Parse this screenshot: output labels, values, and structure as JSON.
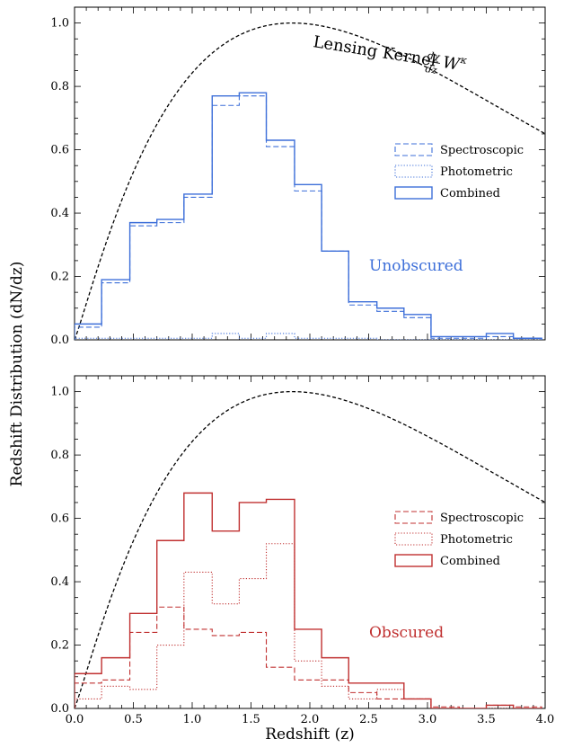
{
  "ylabel": "Redshift Distribution (dN/dz)",
  "xlabel": "Redshift (z)",
  "kernel_label_main": "Lensing Kernel",
  "kernel_label_frac_num": "dχ",
  "kernel_label_frac_den": "dz",
  "kernel_label_tail": "W",
  "kernel_label_sup": "κ",
  "colors": {
    "unobscured": "#3d6fd9",
    "obscured": "#c03030",
    "kernel": "#000000"
  },
  "chart_data": [
    {
      "type": "step",
      "title": "",
      "annotation": "Unobscured",
      "xlim": [
        0.0,
        4.0
      ],
      "ylim": [
        0.0,
        1.05
      ],
      "xticks": [
        "0.0",
        "0.5",
        "1.0",
        "1.5",
        "2.0",
        "2.5",
        "3.0",
        "3.5",
        "4.0"
      ],
      "yticks": [
        "0.0",
        "0.2",
        "0.4",
        "0.6",
        "0.8",
        "1.0"
      ],
      "show_xtick_labels": false,
      "bin_edges": [
        0.0,
        0.23,
        0.47,
        0.7,
        0.93,
        1.17,
        1.4,
        1.63,
        1.87,
        2.1,
        2.33,
        2.57,
        2.8,
        3.03,
        3.27,
        3.5,
        3.73,
        3.97
      ],
      "legend_position": "right",
      "series": [
        {
          "name": "Spectroscopic",
          "style": "dashed",
          "values": [
            0.04,
            0.18,
            0.36,
            0.37,
            0.45,
            0.74,
            0.77,
            0.61,
            0.47,
            0.28,
            0.11,
            0.09,
            0.07,
            0.005,
            0.005,
            0.01,
            0.005
          ]
        },
        {
          "name": "Photometric",
          "style": "dotted",
          "values": [
            0.005,
            0.005,
            0.005,
            0.005,
            0.005,
            0.02,
            0.005,
            0.02,
            0.005,
            0.005,
            0.005,
            0.0,
            0.0,
            0.0,
            0.0,
            0.0,
            0.0
          ]
        },
        {
          "name": "Combined",
          "style": "solid",
          "values": [
            0.05,
            0.19,
            0.37,
            0.38,
            0.46,
            0.77,
            0.78,
            0.63,
            0.49,
            0.28,
            0.12,
            0.1,
            0.08,
            0.01,
            0.01,
            0.02,
            0.005
          ]
        }
      ]
    },
    {
      "type": "step",
      "title": "",
      "annotation": "Obscured",
      "xlim": [
        0.0,
        4.0
      ],
      "ylim": [
        0.0,
        1.05
      ],
      "xticks": [
        "0.0",
        "0.5",
        "1.0",
        "1.5",
        "2.0",
        "2.5",
        "3.0",
        "3.5",
        "4.0"
      ],
      "yticks": [
        "0.0",
        "0.2",
        "0.4",
        "0.6",
        "0.8",
        "1.0"
      ],
      "show_xtick_labels": true,
      "bin_edges": [
        0.0,
        0.23,
        0.47,
        0.7,
        0.93,
        1.17,
        1.4,
        1.63,
        1.87,
        2.1,
        2.33,
        2.57,
        2.8,
        3.03,
        3.27,
        3.5,
        3.73,
        3.97
      ],
      "legend_position": "right",
      "series": [
        {
          "name": "Spectroscopic",
          "style": "dashed",
          "values": [
            0.08,
            0.09,
            0.24,
            0.32,
            0.25,
            0.23,
            0.24,
            0.13,
            0.09,
            0.09,
            0.05,
            0.03,
            0.03,
            0.005,
            0.0,
            0.01,
            0.005
          ]
        },
        {
          "name": "Photometric",
          "style": "dotted",
          "values": [
            0.03,
            0.07,
            0.06,
            0.2,
            0.43,
            0.33,
            0.41,
            0.52,
            0.15,
            0.07,
            0.03,
            0.06,
            0.03,
            0.0,
            0.0,
            0.0,
            0.0
          ]
        },
        {
          "name": "Combined",
          "style": "solid",
          "values": [
            0.11,
            0.16,
            0.3,
            0.53,
            0.68,
            0.56,
            0.65,
            0.66,
            0.25,
            0.16,
            0.08,
            0.08,
            0.03,
            0.0,
            0.0,
            0.01,
            0.0
          ]
        }
      ]
    }
  ]
}
